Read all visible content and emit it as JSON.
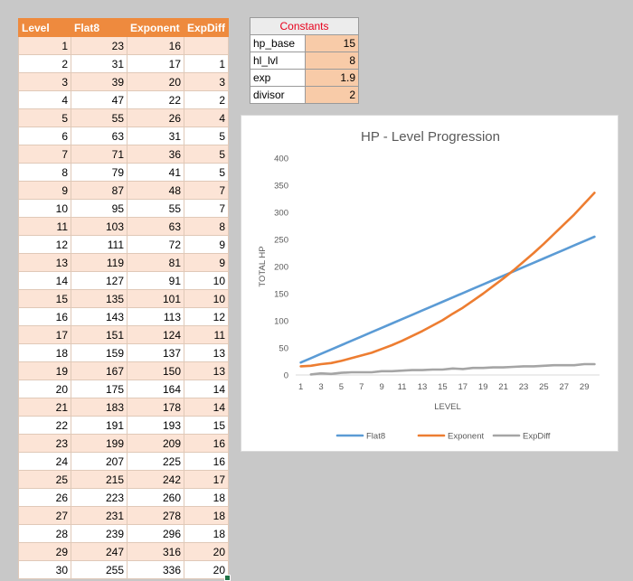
{
  "table": {
    "headers": [
      "Level",
      "Flat8",
      "Exponent",
      "ExpDiff"
    ],
    "rows": [
      [
        "1",
        "23",
        "16",
        ""
      ],
      [
        "2",
        "31",
        "17",
        "1"
      ],
      [
        "3",
        "39",
        "20",
        "3"
      ],
      [
        "4",
        "47",
        "22",
        "2"
      ],
      [
        "5",
        "55",
        "26",
        "4"
      ],
      [
        "6",
        "63",
        "31",
        "5"
      ],
      [
        "7",
        "71",
        "36",
        "5"
      ],
      [
        "8",
        "79",
        "41",
        "5"
      ],
      [
        "9",
        "87",
        "48",
        "7"
      ],
      [
        "10",
        "95",
        "55",
        "7"
      ],
      [
        "11",
        "103",
        "63",
        "8"
      ],
      [
        "12",
        "111",
        "72",
        "9"
      ],
      [
        "13",
        "119",
        "81",
        "9"
      ],
      [
        "14",
        "127",
        "91",
        "10"
      ],
      [
        "15",
        "135",
        "101",
        "10"
      ],
      [
        "16",
        "143",
        "113",
        "12"
      ],
      [
        "17",
        "151",
        "124",
        "11"
      ],
      [
        "18",
        "159",
        "137",
        "13"
      ],
      [
        "19",
        "167",
        "150",
        "13"
      ],
      [
        "20",
        "175",
        "164",
        "14"
      ],
      [
        "21",
        "183",
        "178",
        "14"
      ],
      [
        "22",
        "191",
        "193",
        "15"
      ],
      [
        "23",
        "199",
        "209",
        "16"
      ],
      [
        "24",
        "207",
        "225",
        "16"
      ],
      [
        "25",
        "215",
        "242",
        "17"
      ],
      [
        "26",
        "223",
        "260",
        "18"
      ],
      [
        "27",
        "231",
        "278",
        "18"
      ],
      [
        "28",
        "239",
        "296",
        "18"
      ],
      [
        "29",
        "247",
        "316",
        "20"
      ],
      [
        "30",
        "255",
        "336",
        "20"
      ]
    ]
  },
  "constants": {
    "title": "Constants",
    "rows": [
      {
        "key": "hp_base",
        "value": "15"
      },
      {
        "key": "hl_lvl",
        "value": "8"
      },
      {
        "key": "exp",
        "value": "1.9"
      },
      {
        "key": "divisor",
        "value": "2"
      }
    ]
  },
  "colors": {
    "header_bg": "#ee8a3e",
    "flat8": "#5b9bd5",
    "exponent": "#ed7d31",
    "expdiff": "#a5a5a5",
    "constants_title": "#e8001c"
  },
  "chart_data": {
    "type": "line",
    "title": "HP - Level Progression",
    "xlabel": "LEVEL",
    "ylabel": "TOTAL HP",
    "x": [
      1,
      2,
      3,
      4,
      5,
      6,
      7,
      8,
      9,
      10,
      11,
      12,
      13,
      14,
      15,
      16,
      17,
      18,
      19,
      20,
      21,
      22,
      23,
      24,
      25,
      26,
      27,
      28,
      29,
      30
    ],
    "x_tick_labels": [
      "1",
      "3",
      "5",
      "7",
      "9",
      "11",
      "13",
      "15",
      "17",
      "19",
      "21",
      "23",
      "25",
      "27",
      "29"
    ],
    "y_ticks": [
      0,
      50,
      100,
      150,
      200,
      250,
      300,
      350,
      400
    ],
    "ylim": [
      0,
      400
    ],
    "grid": false,
    "legend": "bottom",
    "series": [
      {
        "name": "Flat8",
        "values": [
          23,
          31,
          39,
          47,
          55,
          63,
          71,
          79,
          87,
          95,
          103,
          111,
          119,
          127,
          135,
          143,
          151,
          159,
          167,
          175,
          183,
          191,
          199,
          207,
          215,
          223,
          231,
          239,
          247,
          255
        ]
      },
      {
        "name": "Exponent",
        "values": [
          16,
          17,
          20,
          22,
          26,
          31,
          36,
          41,
          48,
          55,
          63,
          72,
          81,
          91,
          101,
          113,
          124,
          137,
          150,
          164,
          178,
          193,
          209,
          225,
          242,
          260,
          278,
          296,
          316,
          336
        ]
      },
      {
        "name": "ExpDiff",
        "values": [
          null,
          1,
          3,
          2,
          4,
          5,
          5,
          5,
          7,
          7,
          8,
          9,
          9,
          10,
          10,
          12,
          11,
          13,
          13,
          14,
          14,
          15,
          16,
          16,
          17,
          18,
          18,
          18,
          20,
          20
        ]
      }
    ]
  }
}
